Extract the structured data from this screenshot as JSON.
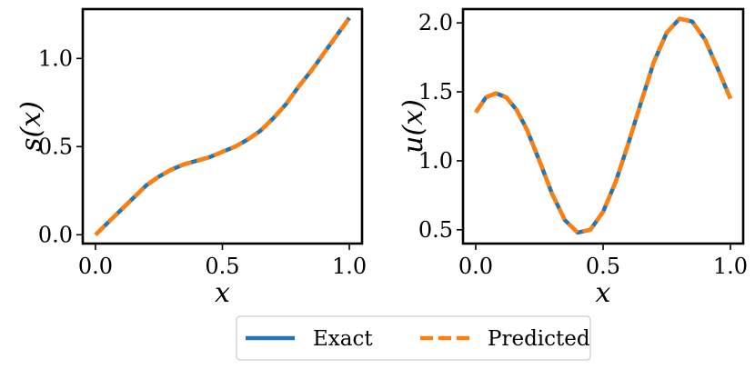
{
  "chart_data": [
    {
      "type": "line",
      "xlabel": "x",
      "ylabel": "s(x)",
      "xlim": [
        -0.05,
        1.05
      ],
      "ylim": [
        -0.05,
        1.28
      ],
      "xticks": [
        0.0,
        0.5,
        1.0
      ],
      "xtick_labels": [
        "0.0",
        "0.5",
        "1.0"
      ],
      "yticks": [
        0.0,
        0.5,
        1.0
      ],
      "ytick_labels": [
        "0.0",
        "0.5",
        "1.0"
      ],
      "grid": false,
      "x": [
        0.0,
        0.05,
        0.1,
        0.15,
        0.2,
        0.25,
        0.3,
        0.35,
        0.4,
        0.45,
        0.5,
        0.55,
        0.6,
        0.65,
        0.7,
        0.75,
        0.8,
        0.85,
        0.9,
        0.95,
        1.0
      ],
      "series": [
        {
          "name": "Exact",
          "color": "#1f77b4",
          "style": "solid",
          "values": [
            0.0,
            0.07,
            0.14,
            0.21,
            0.28,
            0.33,
            0.37,
            0.4,
            0.42,
            0.44,
            0.47,
            0.5,
            0.54,
            0.59,
            0.66,
            0.74,
            0.84,
            0.93,
            1.03,
            1.13,
            1.23
          ]
        },
        {
          "name": "Predicted",
          "color": "#ff7f0e",
          "style": "dashed",
          "values": [
            0.0,
            0.07,
            0.14,
            0.21,
            0.28,
            0.33,
            0.37,
            0.4,
            0.42,
            0.44,
            0.47,
            0.5,
            0.54,
            0.59,
            0.66,
            0.74,
            0.84,
            0.93,
            1.03,
            1.13,
            1.23
          ]
        }
      ]
    },
    {
      "type": "line",
      "xlabel": "x",
      "ylabel": "u(x)",
      "xlim": [
        -0.05,
        1.05
      ],
      "ylim": [
        0.4,
        2.1
      ],
      "xticks": [
        0.0,
        0.5,
        1.0
      ],
      "xtick_labels": [
        "0.0",
        "0.5",
        "1.0"
      ],
      "yticks": [
        0.5,
        1.0,
        1.5,
        2.0
      ],
      "ytick_labels": [
        "0.5",
        "1.0",
        "1.5",
        "2.0"
      ],
      "grid": false,
      "x": [
        0.0,
        0.04,
        0.08,
        0.12,
        0.16,
        0.2,
        0.25,
        0.3,
        0.35,
        0.4,
        0.45,
        0.5,
        0.55,
        0.6,
        0.65,
        0.7,
        0.75,
        0.8,
        0.85,
        0.9,
        0.95,
        1.0
      ],
      "series": [
        {
          "name": "Exact",
          "color": "#1f77b4",
          "style": "solid",
          "values": [
            1.35,
            1.46,
            1.49,
            1.46,
            1.37,
            1.23,
            1.0,
            0.76,
            0.57,
            0.48,
            0.5,
            0.63,
            0.85,
            1.13,
            1.43,
            1.72,
            1.93,
            2.03,
            2.01,
            1.88,
            1.67,
            1.45
          ]
        },
        {
          "name": "Predicted",
          "color": "#ff7f0e",
          "style": "dashed",
          "values": [
            1.35,
            1.46,
            1.49,
            1.46,
            1.37,
            1.23,
            1.0,
            0.76,
            0.57,
            0.48,
            0.5,
            0.63,
            0.85,
            1.13,
            1.43,
            1.72,
            1.93,
            2.03,
            2.01,
            1.88,
            1.67,
            1.45
          ]
        }
      ]
    }
  ],
  "legend": {
    "position": "bottom-center",
    "entries": [
      {
        "label": "Exact",
        "color": "#1f77b4",
        "style": "solid"
      },
      {
        "label": "Predicted",
        "color": "#ff7f0e",
        "style": "dashed"
      }
    ]
  }
}
